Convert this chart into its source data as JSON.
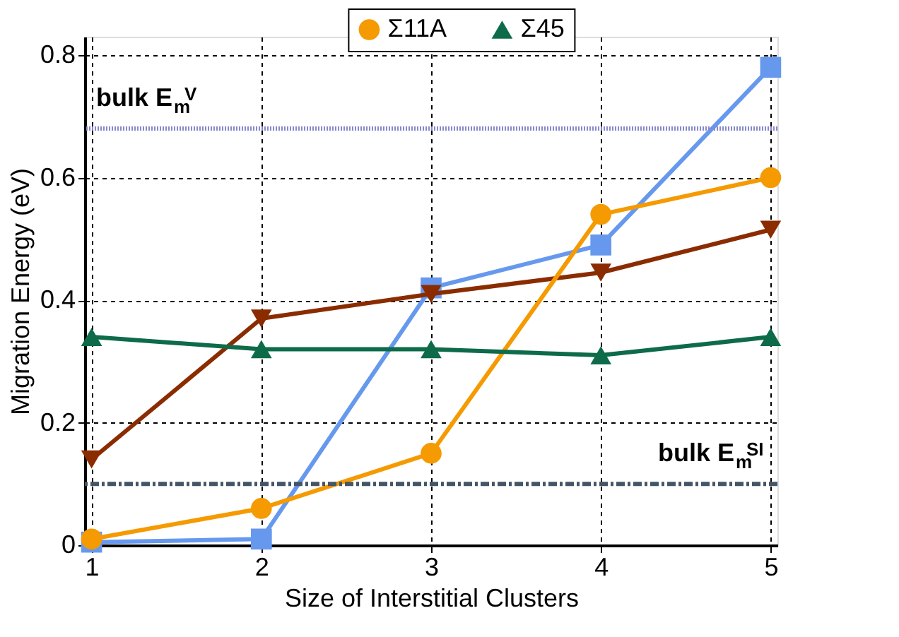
{
  "chart_data": {
    "type": "line",
    "xlabel": "Size of Interstitial Clusters",
    "ylabel": "Migration Energy (eV)",
    "x": [
      1,
      2,
      3,
      4,
      5
    ],
    "series": [
      {
        "color": "#6699ee",
        "marker": "square",
        "values": [
          0.005,
          0.01,
          0.42,
          0.49,
          0.78
        ]
      },
      {
        "color": "#8b2c00",
        "marker": "triangle-down",
        "values": [
          0.14,
          0.37,
          0.41,
          0.445,
          0.515
        ]
      },
      {
        "name": "Σ11A",
        "color": "#f59a00",
        "marker": "circle",
        "values": [
          0.01,
          0.06,
          0.15,
          0.54,
          0.6
        ]
      },
      {
        "name": "Σ45",
        "color": "#0e6b4a",
        "marker": "triangle",
        "values": [
          0.34,
          0.32,
          0.32,
          0.31,
          0.34
        ]
      }
    ],
    "xlim": [
      0.96,
      5.04
    ],
    "ylim": [
      0,
      0.83
    ],
    "xticks": [
      1,
      2,
      3,
      4,
      5
    ],
    "yticks": [
      0,
      0.2,
      0.4,
      0.6,
      0.8
    ],
    "grid": true,
    "legend": "top",
    "line_style": "solid",
    "ref_lines": [
      {
        "axis": "y",
        "value": 0.68,
        "label": "bulk E$_{m}$$^{V}$",
        "color": "#8888cc",
        "line_style": "dotted"
      },
      {
        "axis": "y",
        "value": 0.1,
        "label": "bulk E$_{m}$$^{SI}$",
        "color": "#445566",
        "line_style": "dashdot"
      }
    ]
  }
}
